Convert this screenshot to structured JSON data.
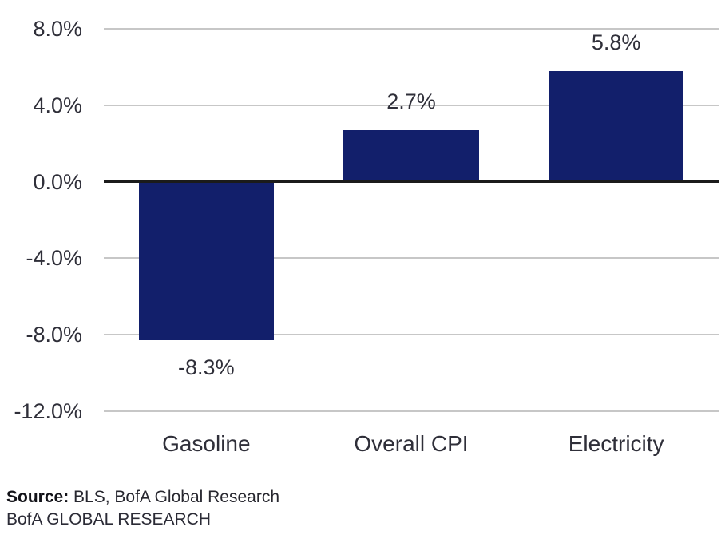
{
  "chart_data": {
    "type": "bar",
    "title": "",
    "categories": [
      "Gasoline",
      "Overall CPI",
      "Electricity"
    ],
    "values": [
      -8.3,
      2.7,
      5.8
    ],
    "data_labels": [
      "-8.3%",
      "2.7%",
      "5.8%"
    ],
    "ylim": [
      -12,
      8
    ],
    "yticks": [
      8,
      4,
      0,
      -4,
      -8,
      -12
    ],
    "ytick_labels": [
      "8.0%",
      "4.0%",
      "0.0%",
      "-4.0%",
      "-8.0%",
      "-12.0%"
    ],
    "xlabel": "",
    "ylabel": "",
    "grid": true,
    "legend_position": "none",
    "bar_color": "#121f6b",
    "gridline_color": "#c7c7c7",
    "zero_line_color": "#1b1b1b",
    "label_color": "#2f2f39"
  },
  "footer": {
    "source_label": "Source:",
    "source_text": " BLS, BofA Global Research",
    "brand_line": "BofA GLOBAL RESEARCH"
  }
}
